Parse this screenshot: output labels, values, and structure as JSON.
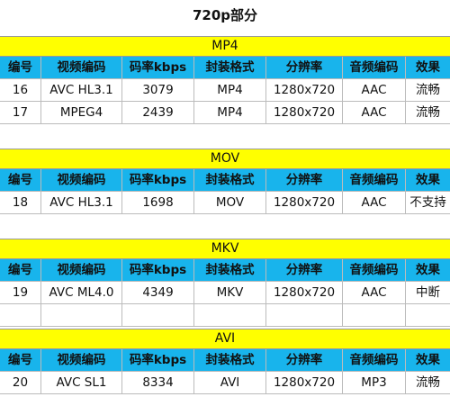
{
  "title": "720p部分",
  "sections": [
    {
      "name": "MP4",
      "headers": [
        "编号",
        "视频编码",
        "码率kbps",
        "封装格式",
        "分辨率",
        "音频编码",
        "效果"
      ],
      "rows": [
        [
          "16",
          "AVC HL3.1",
          "3079",
          "MP4",
          "1280x720",
          "AAC",
          "流畅"
        ],
        [
          "17",
          "MPEG4",
          "2439",
          "MP4",
          "1280x720",
          "AAC",
          "流畅"
        ]
      ]
    },
    {
      "name": "MOV",
      "headers": [
        "编号",
        "视频编码",
        "码率kbps",
        "封装格式",
        "分辨率",
        "音频编码",
        "效果"
      ],
      "rows": [
        [
          "18",
          "AVC HL3.1",
          "1698",
          "MOV",
          "1280x720",
          "AAC",
          "不支持"
        ]
      ]
    },
    {
      "name": "MKV",
      "headers": [
        "编号",
        "视频编码",
        "码率kbps",
        "封装格式",
        "分辨率",
        "音频编码",
        "效果"
      ],
      "rows": [
        [
          "19",
          "AVC ML4.0",
          "4349",
          "MKV",
          "1280x720",
          "AAC",
          "中断"
        ]
      ]
    },
    {
      "name": "AVI",
      "headers": [
        "编号",
        "视频编码",
        "码率kbps",
        "封装格式",
        "分辨率",
        "音频编码",
        "效果"
      ],
      "rows": [
        [
          "20",
          "AVC SL1",
          "8334",
          "AVI",
          "1280x720",
          "MP3",
          "流畅"
        ]
      ]
    }
  ]
}
